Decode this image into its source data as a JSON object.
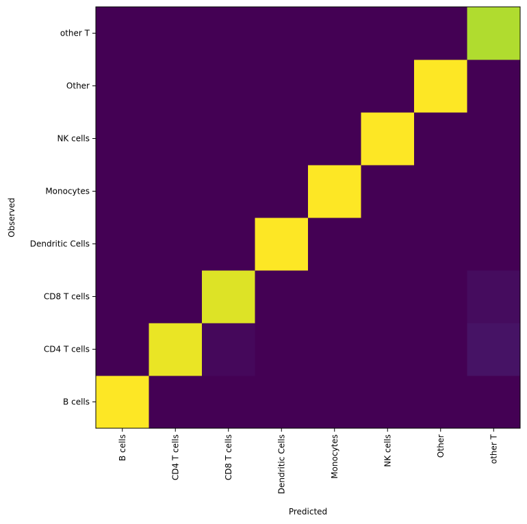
{
  "chart_data": {
    "type": "heatmap",
    "title": "",
    "xlabel": "Predicted",
    "ylabel": "Observed",
    "x_categories": [
      "B cells",
      "CD4 T cells",
      "CD8 T cells",
      "Dendritic Cells",
      "Monocytes",
      "NK cells",
      "Other",
      "other T"
    ],
    "y_categories_bottom_to_top": [
      "B cells",
      "CD4 T cells",
      "CD8 T cells",
      "Dendritic Cells",
      "Monocytes",
      "NK cells",
      "Other",
      "other T"
    ],
    "values_rows_bottom_to_top": [
      [
        1.0,
        0.0,
        0.0,
        0.0,
        0.0,
        0.0,
        0.0,
        0.0
      ],
      [
        0.0,
        0.97,
        0.02,
        0.0,
        0.0,
        0.0,
        0.0,
        0.05
      ],
      [
        0.0,
        0.0,
        0.95,
        0.0,
        0.0,
        0.0,
        0.0,
        0.03
      ],
      [
        0.0,
        0.0,
        0.0,
        1.0,
        0.0,
        0.0,
        0.0,
        0.0
      ],
      [
        0.0,
        0.0,
        0.0,
        0.0,
        1.0,
        0.0,
        0.0,
        0.0
      ],
      [
        0.0,
        0.0,
        0.0,
        0.0,
        0.0,
        1.0,
        0.0,
        0.0
      ],
      [
        0.0,
        0.0,
        0.0,
        0.0,
        0.0,
        0.0,
        1.0,
        0.0
      ],
      [
        0.0,
        0.0,
        0.0,
        0.0,
        0.0,
        0.0,
        0.0,
        0.88
      ]
    ],
    "value_range": [
      0,
      1
    ],
    "colormap": "viridis",
    "grid": false
  }
}
